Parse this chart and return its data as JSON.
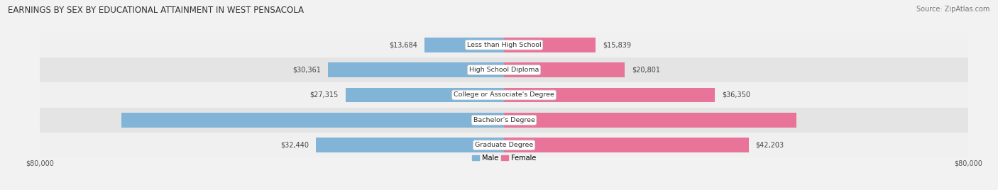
{
  "title": "EARNINGS BY SEX BY EDUCATIONAL ATTAINMENT IN WEST PENSACOLA",
  "source": "Source: ZipAtlas.com",
  "categories": [
    "Less than High School",
    "High School Diploma",
    "College or Associate's Degree",
    "Bachelor's Degree",
    "Graduate Degree"
  ],
  "male_values": [
    13684,
    30361,
    27315,
    65921,
    32440
  ],
  "female_values": [
    15839,
    20801,
    36350,
    50404,
    42203
  ],
  "max_axis": 80000,
  "male_color": "#82b4d8",
  "female_color": "#e8749a",
  "row_bg_light": "#f0f0f0",
  "row_bg_dark": "#e4e4e4",
  "bar_height": 0.58,
  "axis_label_left": "$80,000",
  "axis_label_right": "$80,000",
  "legend_male": "Male",
  "legend_female": "Female",
  "title_fontsize": 8.5,
  "source_fontsize": 7,
  "value_fontsize": 7,
  "cat_fontsize": 6.8,
  "tick_fontsize": 7
}
